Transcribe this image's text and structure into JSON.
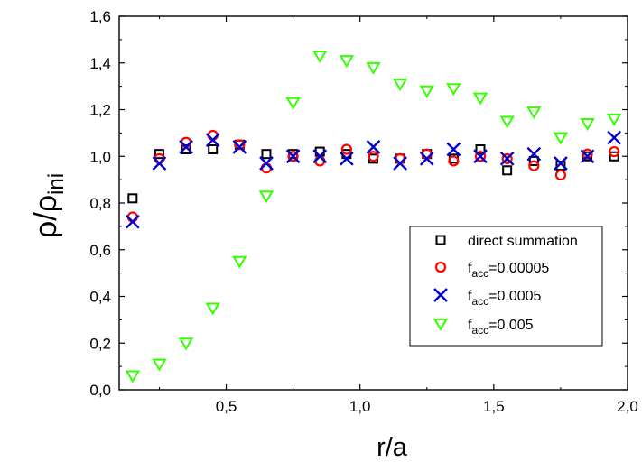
{
  "chart_data": {
    "type": "scatter",
    "xlabel": "r/a",
    "ylabel": {
      "base": "ρ/ρ",
      "sub": "ini"
    },
    "xlim": [
      0.1,
      2.0
    ],
    "ylim": [
      0.0,
      1.6
    ],
    "xticks": [
      0.5,
      1.0,
      1.5,
      2.0
    ],
    "xtick_labels": [
      "0,5",
      "1,0",
      "1,5",
      "2,0"
    ],
    "yticks": [
      0.0,
      0.2,
      0.4,
      0.6,
      0.8,
      1.0,
      1.2,
      1.4,
      1.6
    ],
    "ytick_labels": [
      "0,0",
      "0,2",
      "0,4",
      "0,6",
      "0,8",
      "1,0",
      "1,2",
      "1,4",
      "1,6"
    ],
    "grid": false,
    "legend_position": "lower-right",
    "series": [
      {
        "label": "direct summation",
        "label_main": "direct summation",
        "label_sub": "",
        "label_rest": "",
        "marker": "square",
        "color": "#000000",
        "x": [
          0.15,
          0.25,
          0.35,
          0.45,
          0.55,
          0.65,
          0.75,
          0.85,
          0.95,
          1.05,
          1.15,
          1.25,
          1.35,
          1.45,
          1.55,
          1.65,
          1.75,
          1.85,
          1.95
        ],
        "y": [
          0.82,
          1.01,
          1.03,
          1.03,
          1.05,
          1.01,
          1.01,
          1.02,
          1.01,
          0.99,
          0.99,
          1.01,
          0.99,
          1.03,
          0.94,
          0.98,
          0.96,
          1.0,
          1.0
        ]
      },
      {
        "label": "facc=0.00005",
        "label_main": "f",
        "label_sub": "acc",
        "label_rest": "=0.00005",
        "marker": "circle",
        "color": "#ff0000",
        "x": [
          0.15,
          0.25,
          0.35,
          0.45,
          0.55,
          0.65,
          0.75,
          0.85,
          0.95,
          1.05,
          1.15,
          1.25,
          1.35,
          1.45,
          1.55,
          1.65,
          1.75,
          1.85,
          1.95
        ],
        "y": [
          0.74,
          0.99,
          1.06,
          1.09,
          1.05,
          0.95,
          1.0,
          0.98,
          1.03,
          1.0,
          0.99,
          1.01,
          0.98,
          1.0,
          0.99,
          0.96,
          0.92,
          1.01,
          1.02
        ]
      },
      {
        "label": "facc=0.0005",
        "label_main": "f",
        "label_sub": "acc",
        "label_rest": "=0.0005",
        "marker": "x",
        "color": "#0000cc",
        "x": [
          0.15,
          0.25,
          0.35,
          0.45,
          0.55,
          0.65,
          0.75,
          0.85,
          0.95,
          1.05,
          1.15,
          1.25,
          1.35,
          1.45,
          1.55,
          1.65,
          1.75,
          1.85,
          1.95
        ],
        "y": [
          0.72,
          0.97,
          1.04,
          1.07,
          1.04,
          0.97,
          1.0,
          1.0,
          0.99,
          1.04,
          0.97,
          0.99,
          1.03,
          1.0,
          0.99,
          1.01,
          0.97,
          1.0,
          1.08
        ]
      },
      {
        "label": "facc=0.005",
        "label_main": "f",
        "label_sub": "acc",
        "label_rest": "=0.005",
        "marker": "triangle-down",
        "color": "#33ff00",
        "x": [
          0.15,
          0.25,
          0.35,
          0.45,
          0.55,
          0.65,
          0.75,
          0.85,
          0.95,
          1.05,
          1.15,
          1.25,
          1.35,
          1.45,
          1.55,
          1.65,
          1.75,
          1.85,
          1.95
        ],
        "y": [
          0.06,
          0.11,
          0.2,
          0.35,
          0.55,
          0.83,
          1.23,
          1.43,
          1.41,
          1.38,
          1.31,
          1.28,
          1.29,
          1.25,
          1.15,
          1.19,
          1.08,
          1.14,
          1.16
        ]
      }
    ]
  }
}
